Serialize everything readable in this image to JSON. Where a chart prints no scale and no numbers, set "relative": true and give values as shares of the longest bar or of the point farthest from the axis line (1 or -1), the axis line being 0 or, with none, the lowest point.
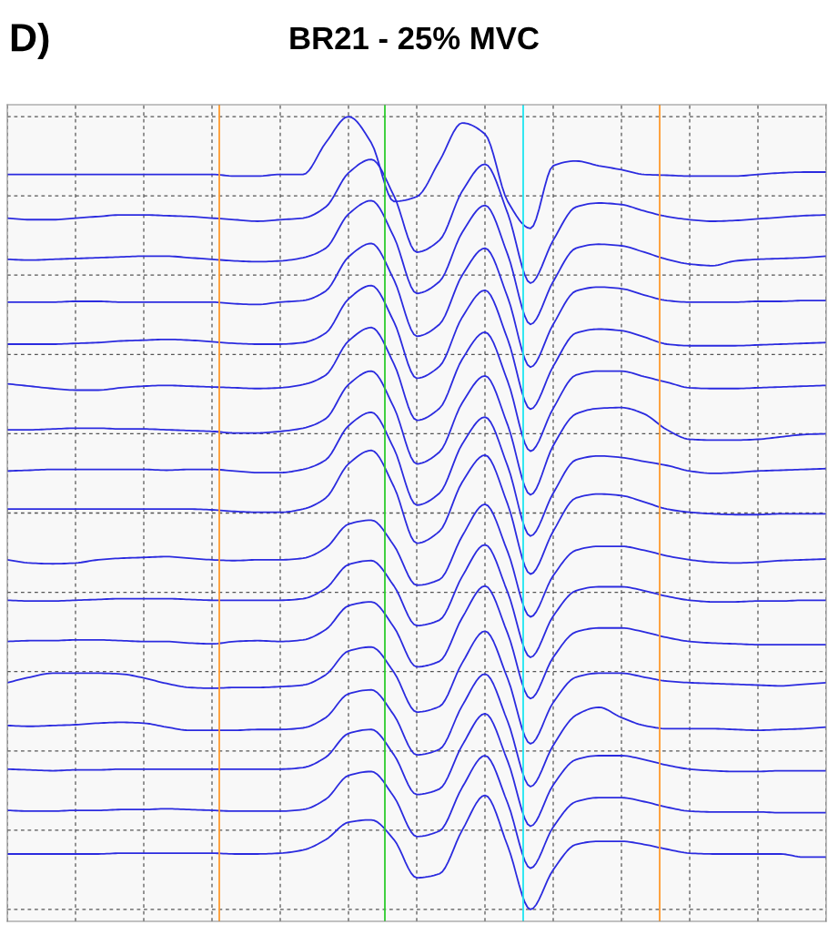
{
  "chart_data": {
    "type": "line",
    "title": "BR21 - 25% MVC",
    "annotations": [
      "D)"
    ],
    "relative": true,
    "grid": true,
    "line_style": "solid",
    "categories": [
      null,
      null,
      null,
      null,
      null,
      null,
      null,
      null,
      null,
      null,
      null,
      null,
      null,
      null,
      null,
      null,
      null,
      null,
      null,
      null,
      null,
      null,
      null,
      null,
      null,
      null,
      null,
      null,
      null,
      null,
      null,
      null,
      null,
      null,
      null,
      null,
      null
    ],
    "series": [
      {
        "color": "#2b2bdf",
        "values": [
          0.927,
          0.927,
          0.927,
          0.927,
          0.927,
          0.927,
          0.927,
          0.927,
          0.927,
          0.927,
          0.925,
          0.925,
          0.927,
          0.927,
          0.967,
          1.0,
          0.967,
          0.893,
          0.899,
          0.944,
          0.992,
          0.978,
          0.893,
          0.859,
          0.938,
          0.944,
          0.938,
          0.933,
          0.927,
          0.926,
          0.925,
          0.925,
          0.925,
          0.927,
          0.929,
          0.93,
          0.93
        ]
      },
      {
        "color": "#2b2bdf",
        "values": [
          0.872,
          0.87,
          0.87,
          0.872,
          0.874,
          0.876,
          0.876,
          0.875,
          0.874,
          0.872,
          0.87,
          0.868,
          0.87,
          0.872,
          0.886,
          0.929,
          0.946,
          0.9,
          0.829,
          0.844,
          0.906,
          0.94,
          0.878,
          0.79,
          0.844,
          0.886,
          0.891,
          0.889,
          0.881,
          0.874,
          0.87,
          0.868,
          0.869,
          0.871,
          0.873,
          0.875,
          0.876
        ]
      },
      {
        "color": "#2b2bdf",
        "values": [
          0.82,
          0.819,
          0.82,
          0.821,
          0.822,
          0.823,
          0.824,
          0.824,
          0.822,
          0.82,
          0.818,
          0.817,
          0.818,
          0.822,
          0.834,
          0.877,
          0.894,
          0.848,
          0.777,
          0.792,
          0.854,
          0.888,
          0.826,
          0.738,
          0.792,
          0.834,
          0.839,
          0.837,
          0.829,
          0.82,
          0.814,
          0.812,
          0.818,
          0.82,
          0.821,
          0.822,
          0.824
        ]
      },
      {
        "color": "#2b2bdf",
        "values": [
          0.766,
          0.766,
          0.766,
          0.767,
          0.767,
          0.766,
          0.766,
          0.766,
          0.766,
          0.766,
          0.764,
          0.763,
          0.766,
          0.768,
          0.78,
          0.823,
          0.84,
          0.794,
          0.723,
          0.738,
          0.8,
          0.834,
          0.772,
          0.684,
          0.738,
          0.78,
          0.785,
          0.783,
          0.775,
          0.768,
          0.766,
          0.766,
          0.766,
          0.767,
          0.767,
          0.768,
          0.768
        ]
      },
      {
        "color": "#2b2bdf",
        "values": [
          0.713,
          0.713,
          0.713,
          0.714,
          0.715,
          0.717,
          0.718,
          0.719,
          0.718,
          0.716,
          0.714,
          0.713,
          0.713,
          0.715,
          0.727,
          0.77,
          0.787,
          0.741,
          0.67,
          0.685,
          0.747,
          0.781,
          0.719,
          0.631,
          0.685,
          0.727,
          0.732,
          0.73,
          0.722,
          0.713,
          0.711,
          0.711,
          0.711,
          0.712,
          0.713,
          0.714,
          0.715
        ]
      },
      {
        "color": "#2b2bdf",
        "values": [
          0.663,
          0.66,
          0.657,
          0.655,
          0.655,
          0.658,
          0.66,
          0.661,
          0.66,
          0.659,
          0.658,
          0.657,
          0.658,
          0.662,
          0.674,
          0.717,
          0.734,
          0.688,
          0.617,
          0.632,
          0.694,
          0.728,
          0.666,
          0.578,
          0.632,
          0.674,
          0.679,
          0.679,
          0.672,
          0.665,
          0.658,
          0.657,
          0.657,
          0.658,
          0.659,
          0.66,
          0.661
        ]
      },
      {
        "color": "#2b2bdf",
        "values": [
          0.605,
          0.605,
          0.606,
          0.607,
          0.607,
          0.606,
          0.606,
          0.605,
          0.604,
          0.603,
          0.601,
          0.601,
          0.603,
          0.607,
          0.619,
          0.662,
          0.679,
          0.633,
          0.562,
          0.577,
          0.639,
          0.673,
          0.611,
          0.523,
          0.585,
          0.625,
          0.632,
          0.633,
          0.625,
          0.605,
          0.593,
          0.592,
          0.592,
          0.593,
          0.596,
          0.599,
          0.6
        ]
      },
      {
        "color": "#2b2bdf",
        "values": [
          0.553,
          0.554,
          0.555,
          0.555,
          0.555,
          0.555,
          0.555,
          0.554,
          0.555,
          0.555,
          0.553,
          0.551,
          0.551,
          0.555,
          0.567,
          0.61,
          0.627,
          0.581,
          0.51,
          0.525,
          0.587,
          0.621,
          0.559,
          0.471,
          0.525,
          0.567,
          0.572,
          0.57,
          0.565,
          0.56,
          0.553,
          0.55,
          0.551,
          0.553,
          0.554,
          0.555,
          0.556
        ]
      },
      {
        "color": "#2b2bdf",
        "values": [
          0.505,
          0.505,
          0.505,
          0.505,
          0.505,
          0.505,
          0.505,
          0.505,
          0.505,
          0.504,
          0.502,
          0.501,
          0.501,
          0.505,
          0.519,
          0.562,
          0.579,
          0.533,
          0.462,
          0.477,
          0.539,
          0.573,
          0.511,
          0.423,
          0.477,
          0.519,
          0.524,
          0.522,
          0.514,
          0.505,
          0.501,
          0.499,
          0.498,
          0.498,
          0.499,
          0.499,
          0.499
        ]
      },
      {
        "color": "#2b2bdf",
        "values": [
          0.441,
          0.437,
          0.436,
          0.437,
          0.441,
          0.443,
          0.444,
          0.445,
          0.443,
          0.441,
          0.44,
          0.441,
          0.441,
          0.443,
          0.456,
          0.486,
          0.491,
          0.459,
          0.409,
          0.416,
          0.471,
          0.511,
          0.451,
          0.369,
          0.421,
          0.453,
          0.458,
          0.458,
          0.453,
          0.446,
          0.441,
          0.438,
          0.437,
          0.438,
          0.44,
          0.441,
          0.442
        ]
      },
      {
        "color": "#2b2bdf",
        "values": [
          0.39,
          0.389,
          0.389,
          0.39,
          0.391,
          0.392,
          0.392,
          0.392,
          0.391,
          0.39,
          0.39,
          0.39,
          0.39,
          0.392,
          0.405,
          0.435,
          0.44,
          0.408,
          0.358,
          0.365,
          0.42,
          0.46,
          0.4,
          0.318,
          0.37,
          0.402,
          0.407,
          0.407,
          0.402,
          0.395,
          0.39,
          0.388,
          0.388,
          0.389,
          0.389,
          0.39,
          0.39
        ]
      },
      {
        "color": "#2b2bdf",
        "values": [
          0.338,
          0.339,
          0.339,
          0.34,
          0.34,
          0.339,
          0.338,
          0.338,
          0.336,
          0.335,
          0.338,
          0.339,
          0.338,
          0.34,
          0.353,
          0.383,
          0.388,
          0.356,
          0.306,
          0.313,
          0.368,
          0.408,
          0.348,
          0.266,
          0.318,
          0.35,
          0.355,
          0.355,
          0.35,
          0.343,
          0.338,
          0.336,
          0.335,
          0.334,
          0.334,
          0.334,
          0.334
        ]
      },
      {
        "color": "#2b2bdf",
        "values": [
          0.286,
          0.293,
          0.298,
          0.298,
          0.298,
          0.297,
          0.292,
          0.285,
          0.28,
          0.279,
          0.28,
          0.28,
          0.281,
          0.283,
          0.296,
          0.326,
          0.331,
          0.299,
          0.249,
          0.256,
          0.311,
          0.351,
          0.291,
          0.209,
          0.261,
          0.293,
          0.298,
          0.298,
          0.293,
          0.288,
          0.286,
          0.285,
          0.284,
          0.283,
          0.282,
          0.284,
          0.286
        ]
      },
      {
        "color": "#2b2bdf",
        "values": [
          0.232,
          0.231,
          0.232,
          0.233,
          0.235,
          0.236,
          0.235,
          0.23,
          0.226,
          0.226,
          0.226,
          0.227,
          0.227,
          0.229,
          0.242,
          0.272,
          0.277,
          0.245,
          0.195,
          0.202,
          0.257,
          0.297,
          0.237,
          0.155,
          0.207,
          0.245,
          0.255,
          0.242,
          0.232,
          0.228,
          0.228,
          0.228,
          0.227,
          0.226,
          0.227,
          0.228,
          0.23
        ]
      },
      {
        "color": "#2b2bdf",
        "values": [
          0.177,
          0.176,
          0.175,
          0.176,
          0.176,
          0.177,
          0.177,
          0.177,
          0.177,
          0.177,
          0.177,
          0.177,
          0.177,
          0.179,
          0.192,
          0.222,
          0.227,
          0.195,
          0.145,
          0.152,
          0.207,
          0.247,
          0.187,
          0.105,
          0.157,
          0.189,
          0.194,
          0.194,
          0.189,
          0.182,
          0.177,
          0.175,
          0.174,
          0.174,
          0.175,
          0.175,
          0.175
        ]
      },
      {
        "color": "#2b2bdf",
        "values": [
          0.125,
          0.124,
          0.124,
          0.125,
          0.125,
          0.126,
          0.126,
          0.127,
          0.126,
          0.125,
          0.124,
          0.124,
          0.124,
          0.126,
          0.139,
          0.169,
          0.174,
          0.142,
          0.092,
          0.099,
          0.154,
          0.194,
          0.134,
          0.052,
          0.104,
          0.136,
          0.141,
          0.141,
          0.136,
          0.129,
          0.124,
          0.123,
          0.123,
          0.123,
          0.122,
          0.122,
          0.122
        ]
      },
      {
        "color": "#2b2bdf",
        "values": [
          0.07,
          0.07,
          0.07,
          0.07,
          0.07,
          0.071,
          0.071,
          0.071,
          0.071,
          0.071,
          0.07,
          0.07,
          0.071,
          0.075,
          0.088,
          0.11,
          0.113,
          0.088,
          0.04,
          0.045,
          0.1,
          0.144,
          0.08,
          0.0,
          0.05,
          0.082,
          0.086,
          0.086,
          0.082,
          0.076,
          0.071,
          0.07,
          0.07,
          0.07,
          0.07,
          0.066,
          0.066
        ]
      }
    ]
  }
}
